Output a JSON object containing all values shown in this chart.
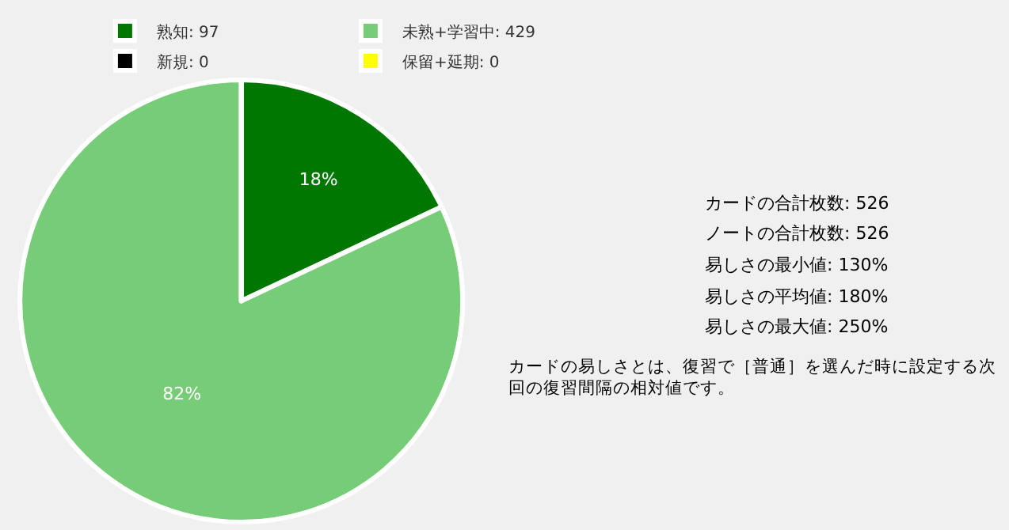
{
  "chart_data": {
    "type": "pie",
    "categories": [
      "熟知: 97",
      "未熟+学習中: 429",
      "新規: 0",
      "保留+延期: 0"
    ],
    "values": [
      18,
      82,
      0,
      0
    ],
    "colors": [
      "#007700",
      "#77cc77",
      "#000000",
      "#ffff00"
    ],
    "value_labels": [
      "18%",
      "82%",
      null,
      null
    ],
    "legend": "top right",
    "annotations": [
      "カードの合計枚数: 526",
      "ノートの合計枚数: 526",
      "易しさの最小値: 130%",
      "易しさの平均値: 180%",
      "易しさの最大値: 250%",
      "カードの易しさとは、復習で［普通］を選んだ時に設定する次回の復習間隔の相対値です。"
    ]
  }
}
